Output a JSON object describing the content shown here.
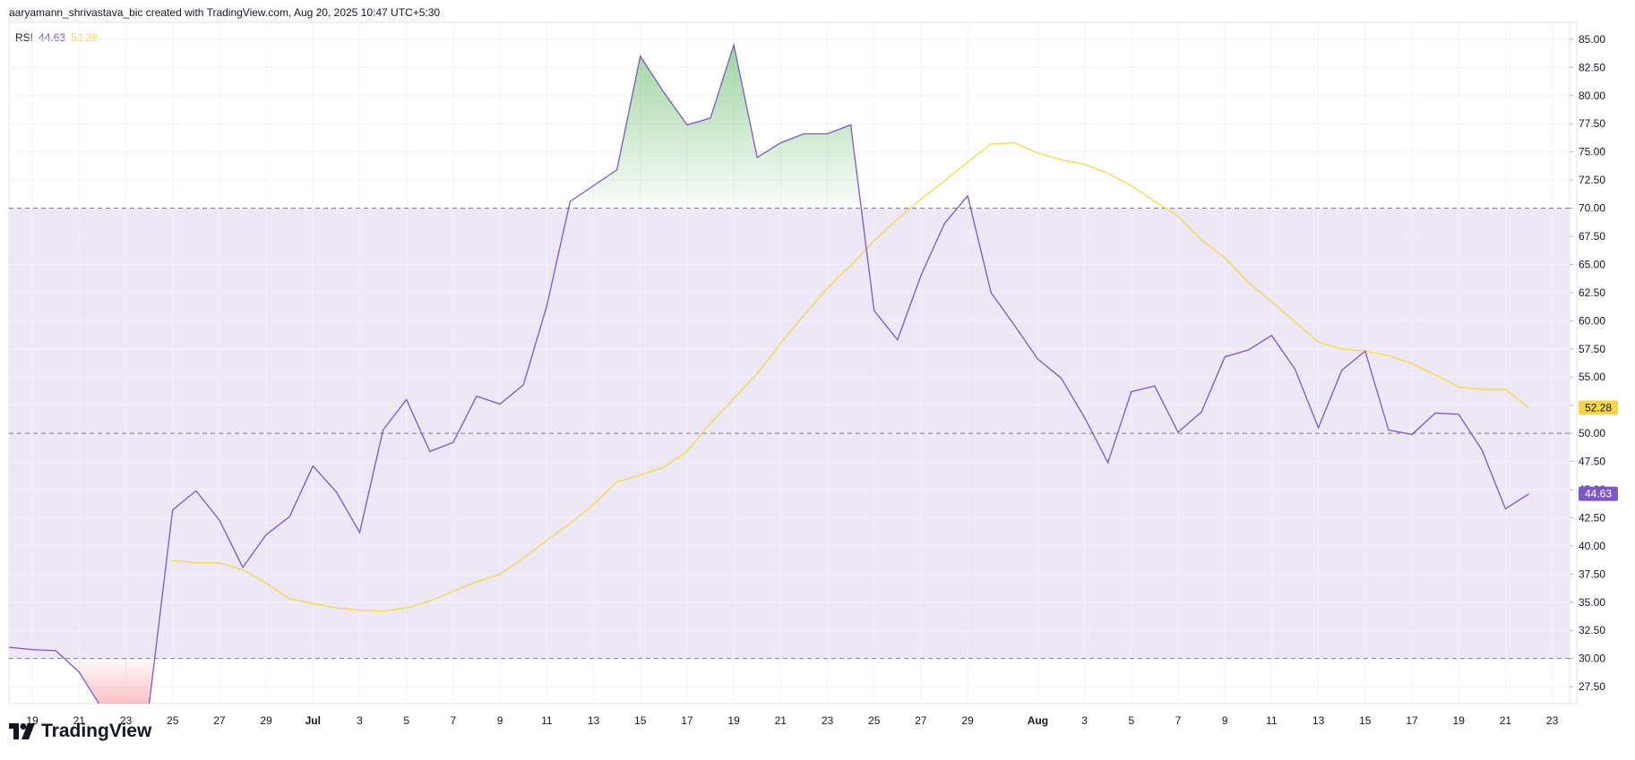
{
  "header": {
    "attribution": "aaryamann_shrivastava_bic created with TradingView.com, Aug 20, 2025 10:47 UTC+5:30"
  },
  "legend": {
    "name": "RSI",
    "rsi_value": "44.63",
    "ma_value": "52.28"
  },
  "footer": {
    "brand": "TradingView"
  },
  "colors": {
    "rsi": "#7e57c2",
    "ma": "#f7d54a",
    "band": "#ede7f6",
    "overbought_fill": "#4caf50",
    "oversold_fill": "#f23645"
  },
  "chart_data": {
    "type": "line",
    "title": "",
    "xlabel": "",
    "ylabel": "",
    "ylim": [
      26,
      86.5
    ],
    "y_ticks": [
      "85.00",
      "82.50",
      "80.00",
      "77.50",
      "75.00",
      "72.50",
      "70.00",
      "67.50",
      "65.00",
      "62.50",
      "60.00",
      "57.50",
      "55.00",
      "52.50",
      "50.00",
      "47.50",
      "45.00",
      "42.50",
      "40.00",
      "37.50",
      "35.00",
      "32.50",
      "30.00",
      "27.50"
    ],
    "x_tick_labels": [
      "19",
      "21",
      "23",
      "25",
      "27",
      "29",
      "Jul",
      "3",
      "5",
      "7",
      "9",
      "11",
      "13",
      "15",
      "17",
      "19",
      "21",
      "23",
      "25",
      "27",
      "29",
      "Aug",
      "3",
      "5",
      "7",
      "9",
      "11",
      "13",
      "15",
      "17",
      "19",
      "21",
      "23"
    ],
    "x_tick_index": [
      1,
      3,
      5,
      7,
      9,
      11,
      13,
      15,
      17,
      19,
      21,
      23,
      25,
      27,
      29,
      31,
      33,
      35,
      37,
      39,
      41,
      44,
      46,
      48,
      50,
      52,
      54,
      56,
      58,
      60,
      62,
      64,
      66
    ],
    "x_start": "Jun 18",
    "x_end": "Aug 23",
    "levels": {
      "upper": 70,
      "middle": 50,
      "lower": 30
    },
    "series": [
      {
        "name": "RSI",
        "values": [
          31.0,
          30.8,
          30.7,
          28.8,
          25.5,
          24.0,
          26.0,
          43.2,
          44.9,
          42.3,
          38.1,
          41.0,
          42.6,
          47.1,
          44.8,
          41.2,
          50.3,
          53.0,
          48.4,
          49.2,
          53.3,
          52.6,
          54.3,
          61.3,
          70.6,
          72.0,
          73.4,
          83.5,
          80.3,
          77.4,
          78.0,
          84.5,
          74.5,
          75.8,
          76.6,
          76.6,
          77.4,
          60.9,
          58.3,
          64.0,
          68.6,
          71.1,
          62.5,
          59.6,
          56.6,
          54.9,
          51.4,
          47.4,
          53.7,
          54.2,
          50.1,
          51.9,
          56.8,
          57.4,
          58.7,
          55.7,
          50.5,
          55.6,
          57.3,
          50.3,
          49.9,
          51.8,
          51.7,
          48.5,
          43.3,
          44.63
        ]
      },
      {
        "name": "RSI-based MA",
        "values": [
          null,
          null,
          null,
          null,
          null,
          null,
          null,
          38.7,
          38.5,
          38.5,
          37.9,
          36.7,
          35.3,
          34.9,
          34.5,
          34.3,
          34.2,
          34.5,
          35.1,
          36.0,
          36.8,
          37.5,
          38.9,
          40.5,
          42.0,
          43.7,
          45.7,
          46.3,
          47.0,
          48.4,
          50.9,
          53.1,
          55.3,
          58.0,
          60.5,
          62.9,
          64.9,
          67.1,
          69.0,
          70.8,
          72.4,
          74.1,
          75.7,
          75.8,
          74.9,
          74.3,
          73.9,
          73.1,
          72.0,
          70.6,
          69.3,
          67.2,
          65.6,
          63.4,
          61.7,
          59.9,
          58.1,
          57.5,
          57.3,
          56.9,
          56.2,
          55.2,
          54.1,
          53.9,
          53.9,
          52.28
        ]
      }
    ],
    "last_values": {
      "RSI": "44.63",
      "RSI-based MA": "52.28"
    }
  }
}
